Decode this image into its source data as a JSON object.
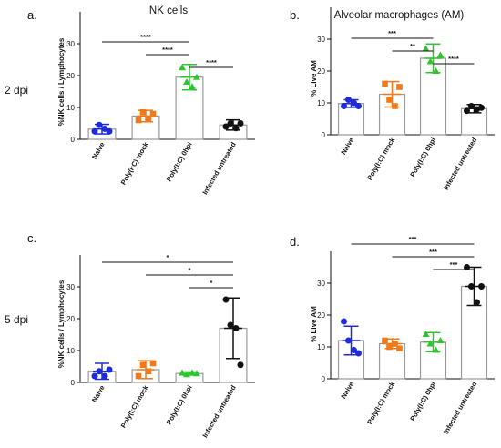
{
  "figure": {
    "col_titles": [
      "NK cells",
      "Alveolar macrophages (AM)"
    ],
    "row_labels": [
      "2 dpi",
      "5 dpi"
    ],
    "colors": {
      "naive": "#1f2bd6",
      "mock": "#f07a1a",
      "hpi0": "#2ec42e",
      "infected": "#111111",
      "bar": "#9a9a9a"
    }
  },
  "chart_data": [
    {
      "panel": "a.",
      "type": "bar",
      "ylabel": "%NK cells / Lymphocytes",
      "ylim": [
        0,
        40
      ],
      "yticks": [
        0,
        10,
        20,
        30
      ],
      "categories": [
        "Naive",
        "Poly(I:C) mock",
        "Poly(I:C) 0hpi",
        "Infected untreated"
      ],
      "values": [
        3.2,
        7.3,
        19.5,
        4.5
      ],
      "sd": [
        1.5,
        1.8,
        4.0,
        1.6
      ],
      "points": [
        [
          2.5,
          4.5,
          3.3,
          2.5
        ],
        [
          6,
          8.5,
          6.5,
          8
        ],
        [
          22.5,
          18,
          16.5,
          19.5
        ],
        [
          4,
          5,
          3.5,
          5
        ]
      ],
      "significance": [
        {
          "from": 0,
          "to": 2,
          "label": "****"
        },
        {
          "from": 1,
          "to": 2,
          "label": "****"
        },
        {
          "from": 2,
          "to": 3,
          "label": "****"
        }
      ]
    },
    {
      "panel": "b.",
      "type": "bar",
      "ylabel": "% Live AM",
      "ylim": [
        0,
        40
      ],
      "yticks": [
        0,
        10,
        20,
        30
      ],
      "categories": [
        "Naive",
        "Poly(I:C) mock",
        "Poly(I:C) 0hpi",
        "Infected untreated"
      ],
      "values": [
        9.8,
        12.7,
        24.0,
        8.2
      ],
      "sd": [
        1.2,
        4.0,
        4.5,
        1.3
      ],
      "points": [
        [
          9,
          11,
          10,
          9
        ],
        [
          16,
          11,
          9,
          15
        ],
        [
          27,
          23,
          20,
          25
        ],
        [
          7.5,
          9,
          8,
          8.5
        ]
      ],
      "significance": [
        {
          "from": 0,
          "to": 2,
          "label": "***"
        },
        {
          "from": 1,
          "to": 2,
          "label": "**"
        },
        {
          "from": 2,
          "to": 3,
          "label": "****"
        }
      ]
    },
    {
      "panel": "c.",
      "type": "bar",
      "ylabel": "%NK cells / Lymphocytes",
      "ylim": [
        0,
        40
      ],
      "yticks": [
        0,
        10,
        20,
        30
      ],
      "categories": [
        "Naive",
        "Poly(I:C) mock",
        "Poly(I:C) 0hpi",
        "Infected untreated"
      ],
      "values": [
        3.5,
        4.0,
        2.8,
        17.0
      ],
      "sd": [
        2.5,
        2.8,
        0.5,
        9.5
      ],
      "points": [
        [
          2,
          3.5,
          2,
          4
        ],
        [
          2,
          5.5,
          3.5,
          6
        ],
        [
          3,
          2.5,
          3,
          2.8
        ],
        [
          26,
          18,
          17,
          5.5
        ]
      ],
      "significance": [
        {
          "from": 0,
          "to": 3,
          "label": "*"
        },
        {
          "from": 1,
          "to": 3,
          "label": "*"
        },
        {
          "from": 2,
          "to": 3,
          "label": "*"
        }
      ]
    },
    {
      "panel": "d.",
      "type": "bar",
      "ylabel": "% Live AM",
      "ylim": [
        0,
        40
      ],
      "yticks": [
        0,
        10,
        20,
        30
      ],
      "categories": [
        "Naive",
        "Poly(I:C) mock",
        "Poly(I:C) 0hpi",
        "Infected untreated"
      ],
      "values": [
        12.0,
        11.0,
        11.5,
        29.0
      ],
      "sd": [
        4.5,
        1.5,
        3.0,
        6.0
      ],
      "points": [
        [
          18,
          12,
          9,
          8
        ],
        [
          12,
          10,
          11,
          9.5
        ],
        [
          14,
          11,
          9,
          12
        ],
        [
          35,
          29,
          24,
          29
        ]
      ],
      "significance": [
        {
          "from": 0,
          "to": 3,
          "label": "***"
        },
        {
          "from": 1,
          "to": 3,
          "label": "***"
        },
        {
          "from": 2,
          "to": 3,
          "label": "***"
        }
      ]
    }
  ]
}
